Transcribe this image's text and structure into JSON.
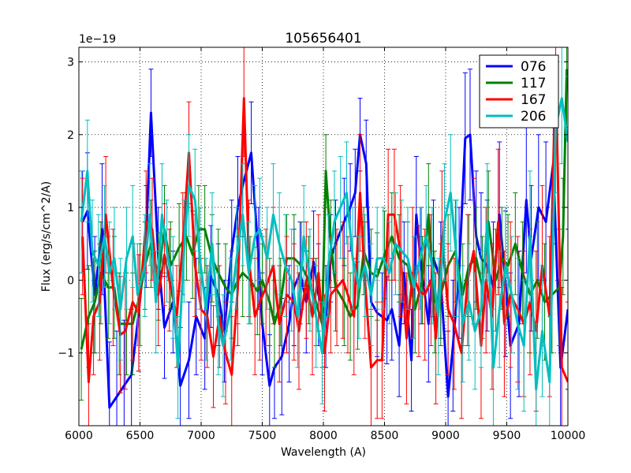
{
  "chart_data": {
    "type": "line",
    "title": "105656401",
    "xlabel": "Wavelength (A)",
    "ylabel": "Flux (erg/s/cm^2/A)",
    "xlim": [
      6000,
      10000
    ],
    "ylim": [
      -2e-19,
      3.2e-19
    ],
    "y_multiplier_label": "1e−19",
    "xticks": [
      6000,
      6500,
      7000,
      7500,
      8000,
      8500,
      9000,
      9500,
      10000
    ],
    "xtick_labels": [
      "6000",
      "6500",
      "7000",
      "7500",
      "8000",
      "8500",
      "9000",
      "9500",
      "10000"
    ],
    "yticks": [
      -1,
      0,
      1,
      2,
      3
    ],
    "ytick_labels": [
      "−1",
      "0",
      "1",
      "2",
      "3"
    ],
    "grid": true,
    "legend": "top-right",
    "error_bars": true,
    "series": [
      {
        "name": "076",
        "color": "#0000ff",
        "x": [
          6030,
          6070,
          6130,
          6190,
          6250,
          6310,
          6370,
          6430,
          6490,
          6550,
          6590,
          6650,
          6700,
          6770,
          6830,
          6900,
          6960,
          7030,
          7080,
          7140,
          7190,
          7250,
          7300,
          7340,
          7410,
          7470,
          7500,
          7560,
          7600,
          7660,
          7720,
          7760,
          7810,
          7860,
          7920,
          7960,
          8020,
          8060,
          8100,
          8170,
          8220,
          8260,
          8300,
          8350,
          8390,
          8440,
          8480,
          8520,
          8560,
          8620,
          8660,
          8720,
          8760,
          8800,
          8860,
          8900,
          8960,
          9020,
          9060,
          9110,
          9160,
          9200,
          9250,
          9290,
          9340,
          9390,
          9440,
          9490,
          9530,
          9600,
          9660,
          9700,
          9760,
          9820,
          9880,
          9940,
          10000
        ],
        "y": [
          0.8,
          0.95,
          -0.2,
          0.7,
          -1.75,
          -1.6,
          -1.45,
          -1.3,
          -0.45,
          0.6,
          2.3,
          0.3,
          -0.65,
          -0.3,
          -1.45,
          -1.1,
          -0.5,
          -0.8,
          0.05,
          -0.2,
          -0.7,
          0.4,
          1.0,
          1.3,
          1.75,
          0.3,
          -0.6,
          -1.45,
          -1.2,
          -1.05,
          -0.6,
          -0.1,
          0.1,
          -0.3,
          0.25,
          -0.2,
          -0.5,
          0.3,
          0.5,
          0.8,
          1.0,
          1.2,
          2.0,
          1.6,
          -0.3,
          -0.45,
          -0.5,
          -0.55,
          -0.4,
          -0.9,
          0.1,
          -1.1,
          0.9,
          0.2,
          -0.6,
          0.3,
          0.0,
          -1.6,
          -0.9,
          0.1,
          1.95,
          2.0,
          0.6,
          0.3,
          0.2,
          -0.1,
          0.9,
          -0.05,
          -0.9,
          -0.6,
          1.1,
          0.3,
          1.0,
          0.8,
          1.6,
          -1.2,
          -0.4
        ],
        "error": [
          0.7,
          0.8,
          0.8,
          0.9,
          0.9,
          0.9,
          0.9,
          0.9,
          0.8,
          0.7,
          0.6,
          0.7,
          0.7,
          0.7,
          0.8,
          0.8,
          0.8,
          0.7,
          0.7,
          0.7,
          0.7,
          0.7,
          0.7,
          0.7,
          0.7,
          0.7,
          0.7,
          0.7,
          0.7,
          0.8,
          0.8,
          0.8,
          0.7,
          0.7,
          0.7,
          0.7,
          0.7,
          0.6,
          0.6,
          0.6,
          0.6,
          0.6,
          0.5,
          0.6,
          0.6,
          0.6,
          0.6,
          0.6,
          0.7,
          0.7,
          0.7,
          0.7,
          0.8,
          0.8,
          0.8,
          0.8,
          0.8,
          0.9,
          0.9,
          0.9,
          0.9,
          0.9,
          0.9,
          0.9,
          0.9,
          0.9,
          1.0,
          1.0,
          1.0,
          1.0,
          1.0,
          1.0,
          1.0,
          1.1,
          1.1,
          1.1,
          1.1
        ]
      },
      {
        "name": "117",
        "color": "#008000",
        "x": [
          6020,
          6080,
          6130,
          6180,
          6240,
          6290,
          6330,
          6390,
          6440,
          6500,
          6540,
          6590,
          6650,
          6700,
          6750,
          6820,
          6880,
          6930,
          6980,
          7030,
          7090,
          7140,
          7200,
          7250,
          7300,
          7340,
          7400,
          7460,
          7500,
          7560,
          7600,
          7650,
          7700,
          7760,
          7820,
          7880,
          7940,
          7990,
          8020,
          8060,
          8100,
          8170,
          8220,
          8280,
          8330,
          8390,
          8440,
          8500,
          8560,
          8620,
          8690,
          8750,
          8810,
          8860,
          8910,
          8960,
          9020,
          9080,
          9140,
          9190,
          9250,
          9300,
          9350,
          9410,
          9460,
          9510,
          9570,
          9630,
          9690,
          9750,
          9810,
          9870,
          9930,
          9960,
          9990
        ],
        "y": [
          -0.95,
          -0.5,
          -0.3,
          0.1,
          -0.1,
          -0.1,
          -0.6,
          -0.6,
          -0.6,
          -0.2,
          0.2,
          0.5,
          0.05,
          0.7,
          0.2,
          0.45,
          0.6,
          0.35,
          0.7,
          0.7,
          0.3,
          0.1,
          -0.1,
          -0.2,
          0.0,
          0.1,
          0.0,
          -0.15,
          0.0,
          -0.3,
          -0.6,
          -0.3,
          0.3,
          0.3,
          0.2,
          0.0,
          -0.3,
          -0.6,
          1.5,
          0.5,
          -0.1,
          -0.3,
          -0.5,
          -0.35,
          0.4,
          0.1,
          0.05,
          0.35,
          0.6,
          0.3,
          0.2,
          -0.4,
          0.0,
          0.9,
          -0.3,
          -0.2,
          0.2,
          0.4,
          -0.2,
          0.2,
          0.3,
          -0.1,
          0.8,
          0.0,
          0.3,
          0.2,
          0.5,
          0.1,
          -0.2,
          0.0,
          -0.3,
          -0.2,
          -0.1,
          0.6,
          2.9
        ],
        "error": [
          0.7,
          0.7,
          0.7,
          0.7,
          0.7,
          0.7,
          0.7,
          0.7,
          0.7,
          0.7,
          0.6,
          0.6,
          0.6,
          0.6,
          0.6,
          0.6,
          0.6,
          0.6,
          0.6,
          0.6,
          0.6,
          0.6,
          0.6,
          0.6,
          0.6,
          0.6,
          0.6,
          0.6,
          0.6,
          0.6,
          0.6,
          0.6,
          0.6,
          0.6,
          0.6,
          0.6,
          0.6,
          0.6,
          0.5,
          0.6,
          0.6,
          0.6,
          0.6,
          0.6,
          0.6,
          0.6,
          0.6,
          0.6,
          0.6,
          0.6,
          0.6,
          0.6,
          0.6,
          0.7,
          0.7,
          0.7,
          0.7,
          0.7,
          0.7,
          0.7,
          0.7,
          0.7,
          0.7,
          0.7,
          0.7,
          0.7,
          0.7,
          0.7,
          0.8,
          0.8,
          0.8,
          0.8,
          0.8,
          0.8,
          0.8
        ]
      },
      {
        "name": "167",
        "color": "#ff0000",
        "x": [
          6030,
          6080,
          6120,
          6170,
          6220,
          6280,
          6340,
          6380,
          6440,
          6490,
          6550,
          6600,
          6650,
          6700,
          6740,
          6800,
          6850,
          6900,
          6950,
          7000,
          7050,
          7100,
          7150,
          7200,
          7250,
          7300,
          7350,
          7390,
          7440,
          7480,
          7530,
          7590,
          7640,
          7700,
          7760,
          7800,
          7860,
          7910,
          7960,
          8010,
          8060,
          8110,
          8160,
          8200,
          8250,
          8300,
          8340,
          8390,
          8440,
          8480,
          8530,
          8580,
          8630,
          8680,
          8730,
          8780,
          8830,
          8880,
          8920,
          8970,
          9020,
          9070,
          9130,
          9180,
          9230,
          9290,
          9330,
          9380,
          9430,
          9480,
          9530,
          9590,
          9640,
          9690,
          9740,
          9790,
          9850,
          9900,
          9950,
          10000
        ],
        "y": [
          0.6,
          -1.4,
          -0.5,
          -0.3,
          0.9,
          -0.1,
          -0.75,
          -0.7,
          -0.3,
          -0.45,
          0.8,
          0.7,
          -0.2,
          0.35,
          0.0,
          -0.5,
          0.5,
          1.75,
          0.2,
          -0.4,
          -0.5,
          -1.05,
          -0.5,
          -1.0,
          -1.3,
          -0.1,
          2.5,
          0.3,
          -0.5,
          -0.3,
          -0.1,
          0.2,
          -0.6,
          -0.2,
          -0.3,
          -0.7,
          0.0,
          -0.5,
          0.1,
          -1.0,
          -0.2,
          -0.1,
          0.0,
          -0.2,
          -0.5,
          1.2,
          0.0,
          -1.2,
          -1.1,
          -1.1,
          0.9,
          0.9,
          0.4,
          -0.8,
          0.1,
          -0.15,
          -0.2,
          0.0,
          -0.8,
          0.6,
          -0.4,
          -0.6,
          -1.0,
          0.0,
          0.4,
          -0.9,
          0.0,
          -0.5,
          0.8,
          -0.6,
          -0.2,
          -0.4,
          -0.6,
          -0.3,
          -0.7,
          0.2,
          -0.5,
          2.9,
          -1.2,
          -1.4
        ],
        "error": [
          0.8,
          0.8,
          0.8,
          0.8,
          0.8,
          0.8,
          0.8,
          0.8,
          0.8,
          0.8,
          0.7,
          0.7,
          0.7,
          0.7,
          0.7,
          0.7,
          0.7,
          0.7,
          0.7,
          0.7,
          0.7,
          0.7,
          0.7,
          0.7,
          0.8,
          0.8,
          0.8,
          0.8,
          0.8,
          0.8,
          0.8,
          0.8,
          0.8,
          0.8,
          0.8,
          0.8,
          0.8,
          0.8,
          0.8,
          0.8,
          0.8,
          0.8,
          0.8,
          0.8,
          0.8,
          0.8,
          0.8,
          0.8,
          0.8,
          0.8,
          0.9,
          0.9,
          0.9,
          0.9,
          0.9,
          0.9,
          0.9,
          0.9,
          0.9,
          0.9,
          0.9,
          0.9,
          0.9,
          0.9,
          1.0,
          1.0,
          1.0,
          1.0,
          1.0,
          1.0,
          1.0,
          1.0,
          1.0,
          1.0,
          1.1,
          1.1,
          1.1,
          1.1,
          1.1,
          1.1
        ]
      },
      {
        "name": "206",
        "color": "#00bfbf",
        "x": [
          6020,
          6070,
          6110,
          6160,
          6210,
          6250,
          6290,
          6340,
          6390,
          6440,
          6480,
          6540,
          6580,
          6630,
          6680,
          6720,
          6770,
          6810,
          6860,
          6900,
          6950,
          6990,
          7040,
          7090,
          7140,
          7180,
          7240,
          7290,
          7340,
          7390,
          7440,
          7480,
          7540,
          7590,
          7640,
          7690,
          7740,
          7790,
          7840,
          7890,
          7940,
          7990,
          8040,
          8090,
          8140,
          8190,
          8240,
          8290,
          8340,
          8390,
          8440,
          8490,
          8540,
          8590,
          8640,
          8690,
          8740,
          8790,
          8840,
          8890,
          8940,
          8990,
          9040,
          9090,
          9140,
          9190,
          9240,
          9290,
          9340,
          9390,
          9440,
          9490,
          9540,
          9590,
          9640,
          9690,
          9740,
          9790,
          9850,
          9900,
          9950,
          10000
        ],
        "y": [
          0.8,
          1.5,
          0.4,
          0.2,
          0.6,
          0.1,
          0.3,
          -0.4,
          0.3,
          0.6,
          -0.2,
          0.2,
          0.9,
          -0.3,
          0.9,
          0.4,
          -0.1,
          -1.2,
          0.4,
          1.3,
          1.1,
          0.3,
          -0.4,
          0.5,
          -0.6,
          -0.9,
          -0.4,
          0.3,
          0.9,
          0.1,
          0.6,
          0.7,
          0.3,
          0.9,
          0.5,
          0.2,
          0.0,
          -0.5,
          0.6,
          0.0,
          -0.5,
          -1.0,
          0.2,
          0.8,
          1.0,
          1.2,
          0.3,
          -0.1,
          0.2,
          -0.2,
          0.3,
          0.3,
          0.1,
          0.5,
          0.4,
          0.3,
          -0.1,
          0.3,
          0.6,
          0.2,
          -0.5,
          0.8,
          1.2,
          0.3,
          -0.6,
          -0.3,
          -0.7,
          -0.4,
          0.8,
          -1.2,
          -0.4,
          0.2,
          -0.2,
          -0.6,
          -0.9,
          0.6,
          -1.5,
          -0.7,
          -1.4,
          2.1,
          2.5,
          1.9
        ],
        "error": [
          0.7,
          0.7,
          0.7,
          0.7,
          0.7,
          0.7,
          0.7,
          0.7,
          0.7,
          0.7,
          0.7,
          0.7,
          0.7,
          0.7,
          0.7,
          0.7,
          0.7,
          0.7,
          0.7,
          0.7,
          0.7,
          0.7,
          0.7,
          0.7,
          0.7,
          0.7,
          0.7,
          0.7,
          0.7,
          0.7,
          0.7,
          0.7,
          0.7,
          0.7,
          0.7,
          0.7,
          0.7,
          0.7,
          0.7,
          0.7,
          0.7,
          0.7,
          0.7,
          0.7,
          0.7,
          0.7,
          0.7,
          0.7,
          0.7,
          0.7,
          0.7,
          0.7,
          0.7,
          0.7,
          0.7,
          0.7,
          0.7,
          0.7,
          0.7,
          0.8,
          0.8,
          0.8,
          0.8,
          0.8,
          0.8,
          0.8,
          0.8,
          0.8,
          0.8,
          0.8,
          0.8,
          0.8,
          0.8,
          0.9,
          0.9,
          0.9,
          0.9,
          0.9,
          0.9,
          0.9,
          0.9,
          0.9
        ]
      }
    ]
  }
}
